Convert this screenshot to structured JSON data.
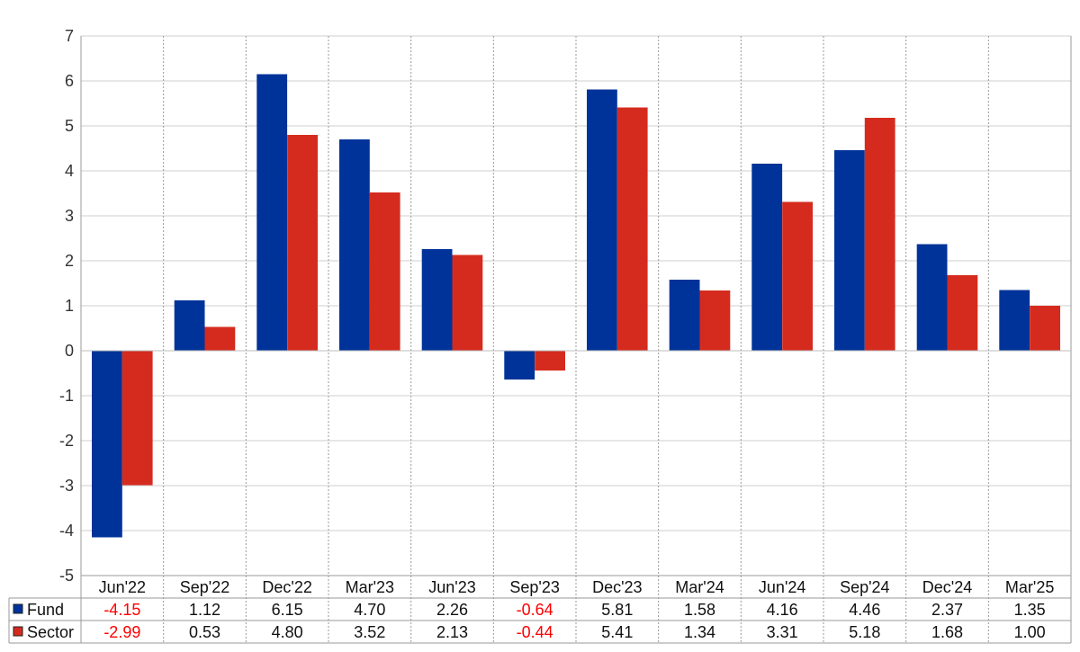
{
  "chart_data": {
    "type": "bar",
    "title": "",
    "xlabel": "",
    "ylabel": "",
    "ylim": [
      -5,
      7
    ],
    "yticks": [
      "7",
      "6",
      "5",
      "4",
      "3",
      "2",
      "1",
      "0",
      "-1",
      "-2",
      "-3",
      "-4",
      "-5"
    ],
    "grid": true,
    "categories": [
      "Jun'22",
      "Sep'22",
      "Dec'22",
      "Mar'23",
      "Jun'23",
      "Sep'23",
      "Dec'23",
      "Mar'24",
      "Jun'24",
      "Sep'24",
      "Dec'24",
      "Mar'25"
    ],
    "series": [
      {
        "name": "Fund",
        "color": "#003399",
        "values": [
          -4.15,
          1.12,
          6.15,
          4.7,
          2.26,
          -0.64,
          5.81,
          1.58,
          4.16,
          4.46,
          2.37,
          1.35
        ],
        "labels": [
          "-4.15",
          "1.12",
          "6.15",
          "4.70",
          "2.26",
          "-0.64",
          "5.81",
          "1.58",
          "4.16",
          "4.46",
          "2.37",
          "1.35"
        ]
      },
      {
        "name": "Sector",
        "color": "#d52b1e",
        "values": [
          -2.99,
          0.53,
          4.8,
          3.52,
          2.13,
          -0.44,
          5.41,
          1.34,
          3.31,
          5.18,
          1.68,
          1.0
        ],
        "labels": [
          "-2.99",
          "0.53",
          "4.80",
          "3.52",
          "2.13",
          "-0.44",
          "5.41",
          "1.34",
          "3.31",
          "5.18",
          "1.68",
          "1.00"
        ]
      }
    ],
    "negative_value_color": "#ff0000"
  }
}
